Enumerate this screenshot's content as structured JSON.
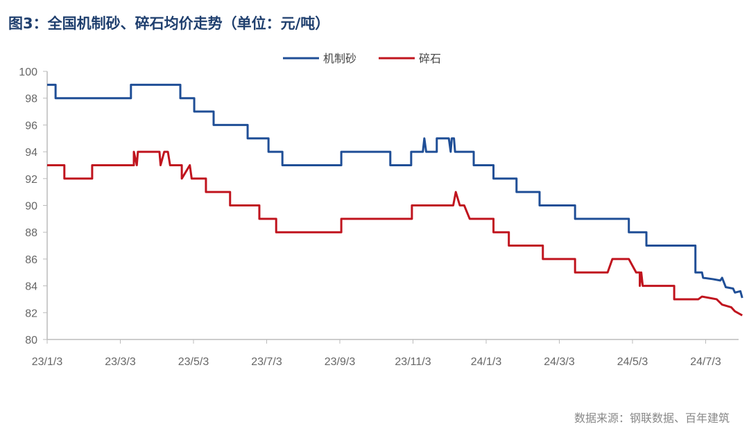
{
  "chart_data": {
    "type": "line",
    "title": "图3：全国机制砂、碎石均价走势（单位：元/吨）",
    "source": "数据来源：钢联数据、百年建筑",
    "x_unit": "months since 23/1/3",
    "xticks": [
      "23/1/3",
      "23/3/3",
      "23/5/3",
      "23/7/3",
      "23/9/3",
      "23/11/3",
      "24/1/3",
      "24/3/3",
      "24/5/3",
      "24/7/3"
    ],
    "ylim": [
      80,
      100
    ],
    "yticks": [
      80,
      82,
      84,
      86,
      88,
      90,
      92,
      94,
      96,
      98,
      100
    ],
    "legend": "top-center",
    "series": [
      {
        "name": "机制砂",
        "color": "#1f4e96",
        "points": [
          [
            0,
            99
          ],
          [
            0.23,
            99
          ],
          [
            0.23,
            98
          ],
          [
            2.29,
            98
          ],
          [
            2.29,
            99
          ],
          [
            3.64,
            99
          ],
          [
            3.64,
            98
          ],
          [
            4.02,
            98
          ],
          [
            4.02,
            97
          ],
          [
            4.55,
            97
          ],
          [
            4.55,
            96
          ],
          [
            5.48,
            96
          ],
          [
            5.48,
            95
          ],
          [
            6.05,
            95
          ],
          [
            6.05,
            94
          ],
          [
            6.43,
            94
          ],
          [
            6.43,
            93
          ],
          [
            8.04,
            93
          ],
          [
            8.04,
            94
          ],
          [
            9.38,
            94
          ],
          [
            9.38,
            93
          ],
          [
            9.95,
            93
          ],
          [
            9.95,
            94
          ],
          [
            10.27,
            94
          ],
          [
            10.31,
            95
          ],
          [
            10.36,
            94
          ],
          [
            10.65,
            94
          ],
          [
            10.65,
            95
          ],
          [
            10.98,
            95
          ],
          [
            11.03,
            94
          ],
          [
            11.06,
            95
          ],
          [
            11.12,
            95
          ],
          [
            11.15,
            94
          ],
          [
            11.66,
            94
          ],
          [
            11.66,
            93
          ],
          [
            12.2,
            93
          ],
          [
            12.2,
            92
          ],
          [
            12.83,
            92
          ],
          [
            12.83,
            91
          ],
          [
            13.46,
            91
          ],
          [
            13.46,
            90
          ],
          [
            14.43,
            90
          ],
          [
            14.43,
            89
          ],
          [
            15.9,
            89
          ],
          [
            15.9,
            88
          ],
          [
            16.38,
            88
          ],
          [
            16.38,
            87
          ],
          [
            17.72,
            87
          ],
          [
            17.72,
            85
          ],
          [
            17.9,
            85
          ],
          [
            17.93,
            84.6
          ],
          [
            18.2,
            84.5
          ],
          [
            18.4,
            84.4
          ],
          [
            18.45,
            84.6
          ],
          [
            18.55,
            83.9
          ],
          [
            18.75,
            83.8
          ],
          [
            18.8,
            83.5
          ],
          [
            18.95,
            83.6
          ],
          [
            19.0,
            83.1
          ]
        ]
      },
      {
        "name": "碎石",
        "color": "#c0141e",
        "points": [
          [
            0,
            93
          ],
          [
            0.47,
            93
          ],
          [
            0.47,
            92
          ],
          [
            1.23,
            92
          ],
          [
            1.23,
            93
          ],
          [
            2.37,
            93
          ],
          [
            2.37,
            94
          ],
          [
            2.45,
            93
          ],
          [
            2.48,
            94
          ],
          [
            3.07,
            94
          ],
          [
            3.1,
            93
          ],
          [
            3.2,
            94
          ],
          [
            3.3,
            94
          ],
          [
            3.36,
            93
          ],
          [
            3.68,
            93
          ],
          [
            3.68,
            92
          ],
          [
            3.9,
            93
          ],
          [
            3.95,
            92
          ],
          [
            4.04,
            92
          ],
          [
            4.34,
            92
          ],
          [
            4.34,
            91
          ],
          [
            5.0,
            91
          ],
          [
            5.0,
            90
          ],
          [
            5.8,
            90
          ],
          [
            5.8,
            89
          ],
          [
            6.26,
            89
          ],
          [
            6.26,
            88
          ],
          [
            8.04,
            88
          ],
          [
            8.04,
            89
          ],
          [
            9.97,
            89
          ],
          [
            9.97,
            90
          ],
          [
            11.1,
            90
          ],
          [
            11.17,
            91
          ],
          [
            11.28,
            90
          ],
          [
            11.4,
            90
          ],
          [
            11.55,
            89
          ],
          [
            12.2,
            89
          ],
          [
            12.2,
            88
          ],
          [
            12.62,
            88
          ],
          [
            12.62,
            87
          ],
          [
            13.55,
            87
          ],
          [
            13.55,
            86
          ],
          [
            14.43,
            86
          ],
          [
            14.43,
            85
          ],
          [
            15.32,
            85
          ],
          [
            15.45,
            86
          ],
          [
            15.9,
            86
          ],
          [
            16.1,
            85
          ],
          [
            16.2,
            85
          ],
          [
            16.2,
            84
          ],
          [
            16.24,
            85
          ],
          [
            16.28,
            84
          ],
          [
            17.14,
            84
          ],
          [
            17.14,
            83
          ],
          [
            17.8,
            83
          ],
          [
            17.9,
            83.2
          ],
          [
            18.1,
            83.1
          ],
          [
            18.3,
            83
          ],
          [
            18.45,
            82.6
          ],
          [
            18.7,
            82.4
          ],
          [
            18.8,
            82.1
          ],
          [
            19.0,
            81.8
          ]
        ]
      }
    ]
  }
}
